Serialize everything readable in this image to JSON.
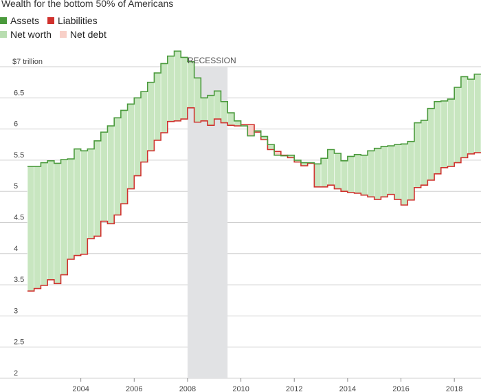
{
  "chart_data": {
    "type": "area",
    "title": "Wealth for the bottom 50% of Americans",
    "legend": [
      {
        "key": "assets",
        "label": "Assets",
        "color": "#4a9a3c"
      },
      {
        "key": "liabilities",
        "label": "Liabilities",
        "color": "#d0312d"
      },
      {
        "key": "net_worth",
        "label": "Net worth",
        "color": "#c8e6c0"
      },
      {
        "key": "net_debt",
        "label": "Net debt",
        "color": "#f8d0c8"
      }
    ],
    "legend_placement": "top-left",
    "y_unit_label": "$7 trillion",
    "ylim": [
      2,
      7
    ],
    "y_ticks": [
      2,
      2.5,
      3,
      3.5,
      4,
      4.5,
      5,
      5.5,
      6,
      6.5
    ],
    "y_tick_labels": [
      "2",
      "2.5",
      "3",
      "3.5",
      "4",
      "4.5",
      "5",
      "5.5",
      "6",
      "6.5"
    ],
    "xlim": [
      2002.0,
      2019.0
    ],
    "x_ticks": [
      2004,
      2006,
      2008,
      2010,
      2012,
      2014,
      2016,
      2018
    ],
    "x_tick_labels": [
      "2004",
      "2006",
      "2008",
      "2010",
      "2012",
      "2014",
      "2016",
      "2018"
    ],
    "grid": true,
    "recession": {
      "label": "RECESSION",
      "start": 2008.0,
      "end": 2009.5
    },
    "quarter_start": 2002.0,
    "series": [
      {
        "name": "Assets",
        "key": "assets",
        "values": [
          5.4,
          5.4,
          5.46,
          5.49,
          5.45,
          5.51,
          5.52,
          5.68,
          5.65,
          5.68,
          5.81,
          5.95,
          6.05,
          6.18,
          6.3,
          6.4,
          6.5,
          6.6,
          6.75,
          6.9,
          7.05,
          7.17,
          7.25,
          7.15,
          7.08,
          6.82,
          6.5,
          6.54,
          6.61,
          6.44,
          6.26,
          6.13,
          6.05,
          5.89,
          5.97,
          5.88,
          5.75,
          5.58,
          5.57,
          5.58,
          5.5,
          5.46,
          5.46,
          5.44,
          5.53,
          5.67,
          5.61,
          5.49,
          5.56,
          5.59,
          5.58,
          5.65,
          5.69,
          5.72,
          5.73,
          5.75,
          5.76,
          5.8,
          6.1,
          6.14,
          6.33,
          6.44,
          6.45,
          6.48,
          6.67,
          6.84,
          6.8,
          6.88
        ]
      },
      {
        "name": "Liabilities",
        "key": "liabilities",
        "values": [
          3.4,
          3.44,
          3.49,
          3.58,
          3.52,
          3.66,
          3.91,
          3.97,
          3.99,
          4.24,
          4.28,
          4.52,
          4.48,
          4.62,
          4.8,
          5.04,
          5.25,
          5.47,
          5.65,
          5.82,
          5.94,
          6.12,
          6.13,
          6.16,
          6.34,
          6.11,
          6.13,
          6.06,
          6.16,
          6.1,
          6.06,
          6.05,
          6.07,
          6.07,
          5.95,
          5.83,
          5.67,
          5.64,
          5.58,
          5.54,
          5.47,
          5.41,
          5.45,
          5.07,
          5.07,
          5.1,
          5.04,
          5.0,
          4.98,
          4.97,
          4.94,
          4.91,
          4.87,
          4.91,
          4.95,
          4.87,
          4.78,
          4.86,
          5.06,
          5.1,
          5.18,
          5.28,
          5.38,
          5.4,
          5.46,
          5.54,
          5.6,
          5.62
        ]
      }
    ]
  }
}
